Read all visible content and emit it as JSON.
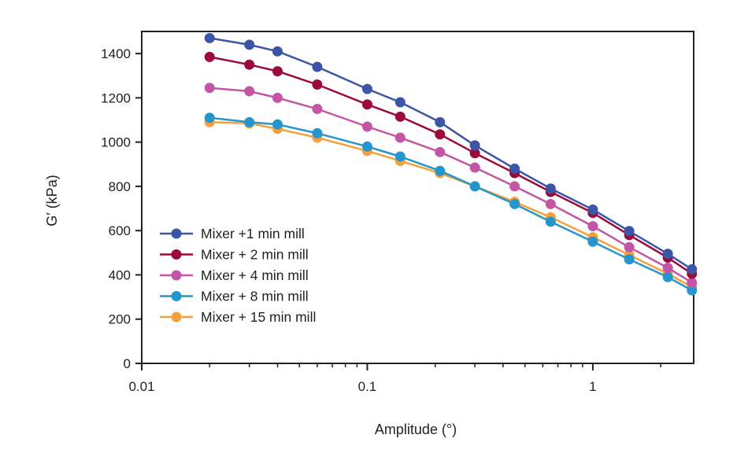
{
  "chart_data": {
    "type": "line",
    "xlabel": "Amplitude (°)",
    "ylabel": "G′ (kPa)",
    "xscale": "log",
    "xlim": [
      0.01,
      2.8
    ],
    "ylim": [
      0,
      1500
    ],
    "x_ticks": [
      0.01,
      0.1,
      1
    ],
    "x_tick_labels": [
      "0.01",
      "0.1",
      "1"
    ],
    "y_ticks": [
      0,
      200,
      400,
      600,
      800,
      1000,
      1200,
      1400
    ],
    "y_tick_labels": [
      "0",
      "200",
      "400",
      "600",
      "800",
      "1000",
      "1200",
      "1400"
    ],
    "grid": false,
    "legend_position": "bottom-left",
    "x": [
      0.02,
      0.03,
      0.04,
      0.06,
      0.1,
      0.14,
      0.21,
      0.3,
      0.45,
      0.65,
      1.0,
      1.45,
      2.15,
      2.75
    ],
    "series": [
      {
        "name": "Mixer +1 min mill",
        "color": "#3d55a6",
        "values": [
          1470,
          1440,
          1410,
          1340,
          1240,
          1180,
          1090,
          985,
          880,
          790,
          695,
          598,
          495,
          425
        ]
      },
      {
        "name": "Mixer + 2 min mill",
        "color": "#9b0b3a",
        "values": [
          1385,
          1350,
          1320,
          1260,
          1170,
          1115,
          1035,
          950,
          860,
          775,
          680,
          580,
          478,
          405
        ]
      },
      {
        "name": "Mixer + 4 min mill",
        "color": "#c455a5",
        "values": [
          1245,
          1230,
          1200,
          1150,
          1070,
          1020,
          955,
          885,
          800,
          720,
          620,
          525,
          432,
          365
        ]
      },
      {
        "name": "Mixer + 8 min mill",
        "color": "#2496cd",
        "values": [
          1110,
          1090,
          1080,
          1040,
          980,
          935,
          870,
          800,
          720,
          640,
          550,
          470,
          390,
          330
        ]
      },
      {
        "name": "Mixer + 15 min mill",
        "color": "#f5a03c",
        "values": [
          1090,
          1085,
          1060,
          1020,
          960,
          915,
          860,
          800,
          730,
          660,
          570,
          490,
          405,
          345
        ]
      }
    ]
  }
}
